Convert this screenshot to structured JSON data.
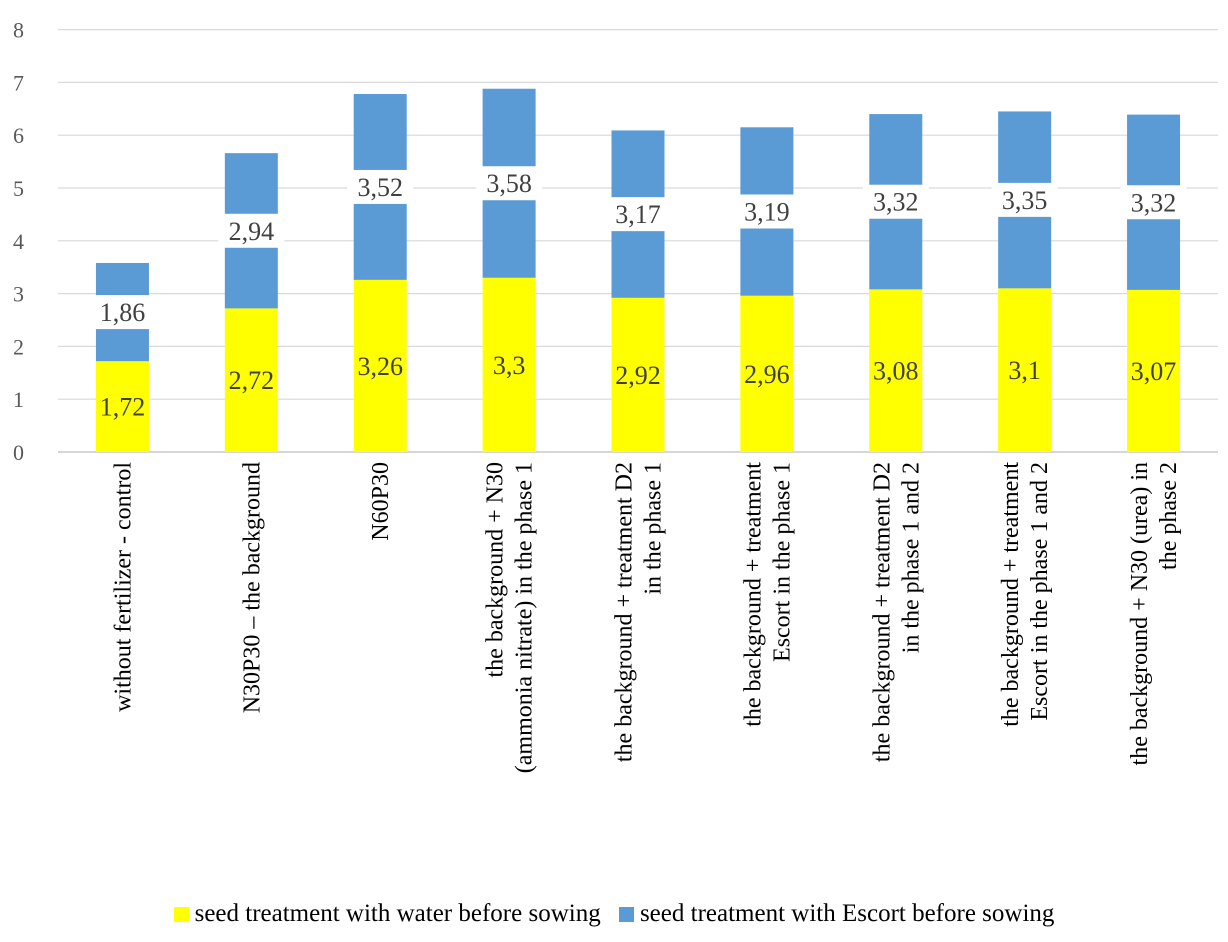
{
  "chart_data": {
    "type": "bar",
    "stacked": true,
    "ylim": [
      0,
      8
    ],
    "yticks": [
      "0",
      "1",
      "2",
      "3",
      "4",
      "5",
      "6",
      "7",
      "8"
    ],
    "grid": true,
    "legend_position": "bottom",
    "categories": [
      [
        "without fertilizer - control"
      ],
      [
        "N30P30 – the background"
      ],
      [
        "N60P30"
      ],
      [
        "the background + N30",
        "(ammonia nitrate) in the phase 1"
      ],
      [
        "the background + treatment D2",
        "in the phase 1"
      ],
      [
        "the background + treatment",
        "Escort in the phase 1"
      ],
      [
        "the background + treatment D2",
        "in the phase 1 and 2"
      ],
      [
        "the background + treatment",
        "Escort in the phase 1 and 2"
      ],
      [
        "the background + N30 (urea) in",
        "the phase 2"
      ]
    ],
    "series": [
      {
        "name": "seed treatment with water before sowing",
        "color": "#FFFF00",
        "values": [
          1.72,
          2.72,
          3.26,
          3.3,
          2.92,
          2.96,
          3.08,
          3.1,
          3.07
        ],
        "labels": [
          "1,72",
          "2,72",
          "3,26",
          "3,3",
          "2,92",
          "2,96",
          "3,08",
          "3,1",
          "3,07"
        ]
      },
      {
        "name": "seed treatment with Escort before sowing",
        "color": "#5B9BD5",
        "values": [
          1.86,
          2.94,
          3.52,
          3.58,
          3.17,
          3.19,
          3.32,
          3.35,
          3.32
        ],
        "labels": [
          "1,86",
          "2,94",
          "3,52",
          "3,58",
          "3,17",
          "3,19",
          "3,32",
          "3,35",
          "3,32"
        ]
      }
    ]
  }
}
